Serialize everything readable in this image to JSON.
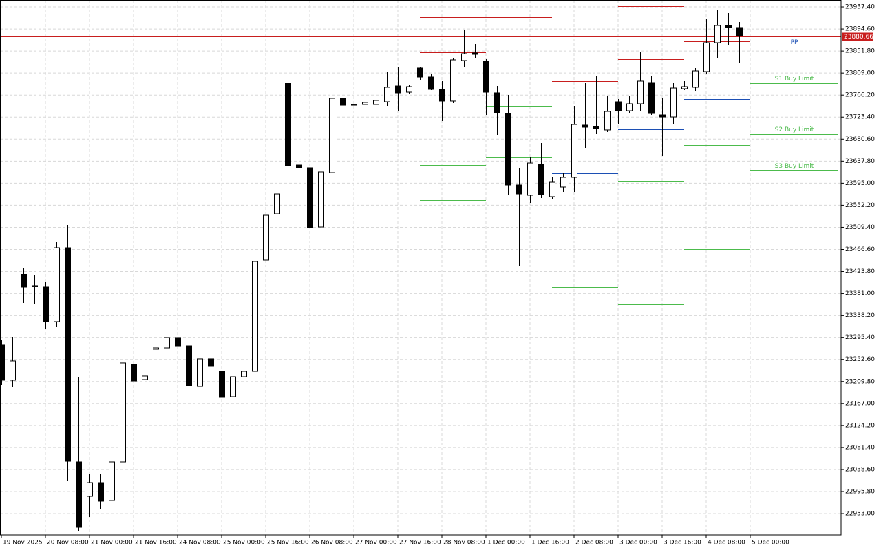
{
  "chart_data": {
    "type": "candlestick",
    "categories": [
      "19 Nov 2025",
      null,
      null,
      null,
      "20 Nov 08:00",
      null,
      null,
      null,
      "21 Nov 00:00",
      null,
      null,
      null,
      "21 Nov 16:00",
      null,
      null,
      null,
      "24 Nov 08:00",
      null,
      null,
      null,
      "25 Nov 00:00",
      null,
      null,
      null,
      "25 Nov 16:00",
      null,
      null,
      null,
      "26 Nov 08:00",
      null,
      null,
      null,
      "27 Nov 00:00",
      null,
      null,
      null,
      "27 Nov 16:00",
      null,
      null,
      null,
      "28 Nov 08:00",
      null,
      null,
      null,
      "1 Dec 00:00",
      null,
      null,
      null,
      "1 Dec 16:00",
      null,
      null,
      null,
      "2 Dec 08:00",
      null,
      null,
      null,
      "3 Dec 00:00",
      null,
      null,
      null,
      "3 Dec 16:00",
      null,
      null,
      null,
      "4 Dec 08:00",
      null,
      null,
      null,
      "5 Dec 00:00"
    ],
    "open": [
      23280.3,
      23212.2,
      23417.9,
      23393.8,
      23393.8,
      23325.7,
      23469.9,
      23053.2,
      22986.4,
      23013.1,
      22978.4,
      23053.2,
      23242.9,
      23213.5,
      23272.3,
      23274.9,
      23295.0,
      23278.9,
      23200.1,
      23253.6,
      23229.5,
      23180.1,
      23218.8,
      23229.5,
      23445.9,
      23535.4,
      23789.2,
      23630.2,
      23624.9,
      23510.0,
      23615.5,
      23759.8,
      23746.4,
      23747.8,
      23747.8,
      23753.1,
      23783.8,
      23771.8,
      23818.6,
      23801.2,
      23777.2,
      23754.5,
      23833.3,
      23848.0,
      23831.9,
      23770.5,
      23730.4,
      23591.5,
      23571.5,
      23631.6,
      23568.8,
      23587.5,
      23606.2,
      23707.7,
      23705.0,
      23698.4,
      23753.1,
      23735.7,
      23749.1,
      23790.5,
      23727.7,
      23723.7,
      23778.5,
      23781.2,
      23811.9,
      23868.0,
      23901.4,
      23897.4,
      null
    ],
    "high": [
      23289.6,
      23296.3,
      23429.9,
      23416.5,
      23403.2,
      23480.6,
      23514.0,
      23218.8,
      23029.2,
      23029.2,
      23189.5,
      23261.6,
      23257.6,
      23304.3,
      23296.3,
      23317.7,
      23404.5,
      23316.3,
      23323.0,
      23287.0,
      23229.5,
      23222.8,
      23303.0,
      23467.3,
      23576.8,
      23590.2,
      23789.2,
      23643.6,
      23670.3,
      23624.9,
      23773.1,
      23769.1,
      23758.5,
      23763.8,
      23838.6,
      23811.9,
      23819.9,
      23786.5,
      23821.2,
      23807.9,
      23793.2,
      23838.6,
      23892.0,
      23865.3,
      23835.9,
      23783.8,
      23766.5,
      23623.6,
      23646.3,
      23673.0,
      23606.2,
      23614.2,
      23745.1,
      23789.2,
      23802.5,
      23763.8,
      23758.5,
      23763.8,
      23849.3,
      23803.9,
      23759.8,
      23790.5,
      23793.2,
      23818.6,
      23913.4,
      23932.1,
      23925.4,
      23908.1,
      null
    ],
    "low": [
      23202.8,
      23198.8,
      23363.1,
      23360.4,
      23312.3,
      23315.0,
      23015.8,
      22918.3,
      22946.4,
      22962.4,
      22942.3,
      22946.4,
      23059.9,
      23141.4,
      23256.2,
      23264.2,
      23276.3,
      23153.4,
      23172.1,
      23218.8,
      23169.4,
      23169.4,
      23141.4,
      23165.4,
      23276.3,
      23506.0,
      23628.9,
      23592.8,
      23451.2,
      23456.6,
      23576.8,
      23729.1,
      23729.1,
      23730.4,
      23697.0,
      23745.1,
      23734.4,
      23769.1,
      23795.9,
      23775.8,
      23715.7,
      23750.4,
      23821.2,
      23837.3,
      23727.7,
      23687.7,
      23572.8,
      23433.9,
      23556.8,
      23566.1,
      23564.8,
      23576.8,
      23578.1,
      23663.6,
      23690.3,
      23694.3,
      23710.4,
      23730.4,
      23735.7,
      23727.7,
      23647.6,
      23709.0,
      23775.8,
      23773.2,
      23807.9,
      23837.3,
      23864.0,
      23827.9,
      null
    ],
    "close": [
      23212.2,
      23249.6,
      23392.5,
      23395.2,
      23325.7,
      23469.9,
      23054.5,
      22926.3,
      23013.1,
      22977.1,
      23053.2,
      23245.6,
      23210.8,
      23220.2,
      23274.9,
      23295.0,
      23278.9,
      23201.5,
      23253.6,
      23238.9,
      23178.8,
      23218.8,
      23229.5,
      23443.2,
      23532.7,
      23574.1,
      23628.9,
      23624.9,
      23508.7,
      23616.9,
      23759.8,
      23746.4,
      23747.8,
      23751.8,
      23755.8,
      23781.2,
      23770.5,
      23782.5,
      23801.2,
      23777.2,
      23754.5,
      23834.6,
      23846.6,
      23845.3,
      23771.8,
      23731.7,
      23591.5,
      23574.1,
      23634.2,
      23572.8,
      23596.8,
      23606.2,
      23709.0,
      23703.7,
      23701.0,
      23734.4,
      23735.7,
      23749.1,
      23793.2,
      23730.4,
      23723.7,
      23779.8,
      23782.5,
      23813.2,
      23868.0,
      23901.4,
      23897.4,
      23880.66,
      null
    ],
    "ylim": [
      22911.6,
      23950.8
    ],
    "yticks": [
      {
        "value": 22953,
        "label": "22953.00"
      },
      {
        "value": 22995.8,
        "label": "22995.80"
      },
      {
        "value": 23038.6,
        "label": "23038.60"
      },
      {
        "value": 23081.4,
        "label": "23081.40"
      },
      {
        "value": 23124.2,
        "label": "23124.20"
      },
      {
        "value": 23167,
        "label": "23167.00"
      },
      {
        "value": 23209.8,
        "label": "23209.80"
      },
      {
        "value": 23252.6,
        "label": "23252.60"
      },
      {
        "value": 23295.4,
        "label": "23295.40"
      },
      {
        "value": 23338.2,
        "label": "23338.20"
      },
      {
        "value": 23381,
        "label": "23381.00"
      },
      {
        "value": 23423.8,
        "label": "23423.80"
      },
      {
        "value": 23466.6,
        "label": "23466.60"
      },
      {
        "value": 23509.4,
        "label": "23509.40"
      },
      {
        "value": 23552.2,
        "label": "23552.20"
      },
      {
        "value": 23595,
        "label": "23595.00"
      },
      {
        "value": 23637.8,
        "label": "23637.80"
      },
      {
        "value": 23680.6,
        "label": "23680.60"
      },
      {
        "value": 23723.4,
        "label": "23723.40"
      },
      {
        "value": 23766.2,
        "label": "23766.20"
      },
      {
        "value": 23809,
        "label": "23809.00"
      },
      {
        "value": 23851.8,
        "label": "23851.80"
      },
      {
        "value": 23894.6,
        "label": "23894.60"
      },
      {
        "value": 23937.4,
        "label": "23937.40"
      }
    ],
    "grid": true,
    "up_color": "#ffffff",
    "down_color": "#000000",
    "last_price": 23880.66,
    "last_price_color": "#c81e1e",
    "levels": [
      {
        "value": 23917.4,
        "x": [
          38,
          50
        ],
        "color": "#c81e1e"
      },
      {
        "value": 23849.3,
        "x": [
          38,
          44
        ],
        "color": "#c81e1e"
      },
      {
        "value": 23774.5,
        "x": [
          38,
          44
        ],
        "color": "#1c4fb4"
      },
      {
        "value": 23706.4,
        "x": [
          38,
          44
        ],
        "color": "#4cbb4c"
      },
      {
        "value": 23630.2,
        "x": [
          38,
          44
        ],
        "color": "#4cbb4c"
      },
      {
        "value": 23562.1,
        "x": [
          38,
          44
        ],
        "color": "#4cbb4c"
      },
      {
        "value": 23817.2,
        "x": [
          44,
          50
        ],
        "color": "#1c4fb4"
      },
      {
        "value": 23745.1,
        "x": [
          44,
          50
        ],
        "color": "#4cbb4c"
      },
      {
        "value": 23644.9,
        "x": [
          44,
          50
        ],
        "color": "#4cbb4c"
      },
      {
        "value": 23572.8,
        "x": [
          44,
          50
        ],
        "color": "#4cbb4c"
      },
      {
        "value": 23793.2,
        "x": [
          50,
          56
        ],
        "color": "#c81e1e"
      },
      {
        "value": 23614.2,
        "x": [
          50,
          56
        ],
        "color": "#1c4fb4"
      },
      {
        "value": 23392.5,
        "x": [
          50,
          56
        ],
        "color": "#4cbb4c"
      },
      {
        "value": 23213.5,
        "x": [
          50,
          56
        ],
        "color": "#4cbb4c"
      },
      {
        "value": 22991.8,
        "x": [
          50,
          56
        ],
        "color": "#4cbb4c"
      },
      {
        "value": 23938.8,
        "x": [
          56,
          62
        ],
        "color": "#c81e1e"
      },
      {
        "value": 23835.9,
        "x": [
          56,
          62
        ],
        "color": "#c81e1e"
      },
      {
        "value": 23699.7,
        "x": [
          56,
          62
        ],
        "color": "#1c4fb4"
      },
      {
        "value": 23598.2,
        "x": [
          56,
          62
        ],
        "color": "#4cbb4c"
      },
      {
        "value": 23461.9,
        "x": [
          56,
          62
        ],
        "color": "#4cbb4c"
      },
      {
        "value": 23360.4,
        "x": [
          56,
          62
        ],
        "color": "#4cbb4c"
      },
      {
        "value": 23870.7,
        "x": [
          62,
          68
        ],
        "color": "#c81e1e"
      },
      {
        "value": 23758.5,
        "x": [
          62,
          68
        ],
        "color": "#1c4fb4"
      },
      {
        "value": 23669.0,
        "x": [
          62,
          68
        ],
        "color": "#4cbb4c"
      },
      {
        "value": 23556.8,
        "x": [
          62,
          68
        ],
        "color": "#4cbb4c"
      },
      {
        "value": 23467.3,
        "x": [
          62,
          68
        ],
        "color": "#4cbb4c"
      },
      {
        "value": 23860.0,
        "x": [
          68,
          76
        ],
        "color": "#1c4fb4",
        "label": "PP"
      },
      {
        "value": 23789.2,
        "x": [
          68,
          76
        ],
        "color": "#4cbb4c",
        "label": "S1 Buy Limit"
      },
      {
        "value": 23690.3,
        "x": [
          68,
          76
        ],
        "color": "#4cbb4c",
        "label": "S2 Buy Limit"
      },
      {
        "value": 23619.5,
        "x": [
          68,
          76
        ],
        "color": "#4cbb4c",
        "label": "S3 Buy Limit"
      }
    ]
  }
}
